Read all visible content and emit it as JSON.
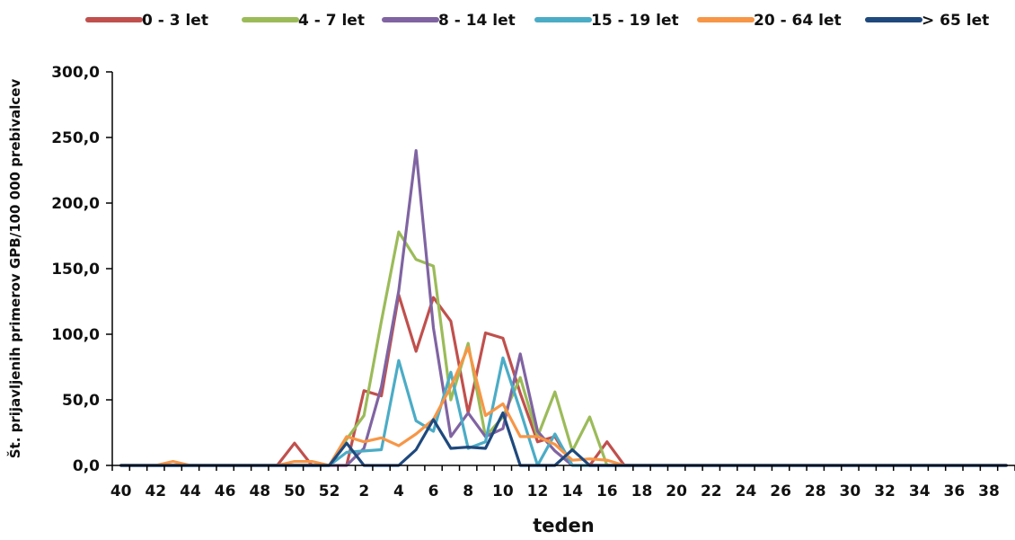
{
  "chart_data": {
    "type": "line",
    "title": "",
    "xlabel": "teden",
    "ylabel": "Št. prijavljenih primerov GPB/100 000 prebivalcev",
    "ylim": [
      0,
      300
    ],
    "yticks": [
      "0,0",
      "50,0",
      "100,0",
      "150,0",
      "200,0",
      "250,0",
      "300,0"
    ],
    "grid": false,
    "legend_position": "top",
    "x": [
      "40",
      "41",
      "42",
      "43",
      "44",
      "45",
      "46",
      "47",
      "48",
      "49",
      "50",
      "51",
      "52",
      "1",
      "2",
      "3",
      "4",
      "5",
      "6",
      "7",
      "8",
      "9",
      "10",
      "11",
      "12",
      "13",
      "14",
      "15",
      "16",
      "17",
      "18",
      "19",
      "20",
      "21",
      "22",
      "23",
      "24",
      "25",
      "26",
      "27",
      "28",
      "29",
      "30",
      "31",
      "32",
      "33",
      "34",
      "35",
      "36",
      "37",
      "38",
      "39"
    ],
    "xtick_labels": [
      "40",
      "42",
      "44",
      "46",
      "48",
      "50",
      "52",
      "2",
      "4",
      "6",
      "8",
      "10",
      "12",
      "14",
      "16",
      "18",
      "20",
      "22",
      "24",
      "26",
      "28",
      "30",
      "32",
      "34",
      "36",
      "38"
    ],
    "series": [
      {
        "name": "0 - 3 let",
        "color": "#c0504d",
        "values": [
          0,
          0,
          0,
          0,
          0,
          0,
          0,
          0,
          0,
          0,
          17,
          0,
          0,
          0,
          57,
          53,
          130,
          87,
          128,
          110,
          40,
          101,
          97,
          55,
          18,
          22,
          0,
          0,
          18,
          0,
          0,
          0,
          0,
          0,
          0,
          0,
          0,
          0,
          0,
          0,
          0,
          0,
          0,
          0,
          0,
          0,
          0,
          0,
          0,
          0,
          0,
          0
        ]
      },
      {
        "name": "4 - 7 let",
        "color": "#9bbb59",
        "values": [
          0,
          0,
          0,
          0,
          0,
          0,
          0,
          0,
          0,
          0,
          0,
          0,
          0,
          20,
          38,
          110,
          178,
          157,
          152,
          50,
          93,
          22,
          37,
          67,
          22,
          56,
          11,
          37,
          0,
          0,
          0,
          0,
          0,
          0,
          0,
          0,
          0,
          0,
          0,
          0,
          0,
          0,
          0,
          0,
          0,
          0,
          0,
          0,
          0,
          0,
          0,
          0
        ]
      },
      {
        "name": "8 - 14 let",
        "color": "#8064a2",
        "values": [
          0,
          0,
          0,
          0,
          0,
          0,
          0,
          0,
          0,
          0,
          0,
          0,
          0,
          0,
          13,
          60,
          133,
          240,
          105,
          22,
          40,
          22,
          28,
          85,
          26,
          11,
          0,
          0,
          0,
          0,
          0,
          0,
          0,
          0,
          0,
          0,
          0,
          0,
          0,
          0,
          0,
          0,
          0,
          0,
          0,
          0,
          0,
          0,
          0,
          0,
          0,
          0
        ]
      },
      {
        "name": "15 - 19 let",
        "color": "#4bacc6",
        "values": [
          0,
          0,
          0,
          0,
          0,
          0,
          0,
          0,
          0,
          0,
          0,
          0,
          0,
          10,
          11,
          12,
          80,
          34,
          26,
          71,
          13,
          18,
          82,
          42,
          0,
          24,
          0,
          0,
          0,
          0,
          0,
          0,
          0,
          0,
          0,
          0,
          0,
          0,
          0,
          0,
          0,
          0,
          0,
          0,
          0,
          0,
          0,
          0,
          0,
          0,
          0,
          0
        ]
      },
      {
        "name": "20 - 64 let",
        "color": "#f79646",
        "values": [
          0,
          0,
          0,
          3,
          0,
          0,
          0,
          0,
          0,
          0,
          3,
          3,
          0,
          22,
          18,
          21,
          15,
          24,
          35,
          60,
          90,
          38,
          47,
          22,
          22,
          16,
          4,
          5,
          4,
          0,
          0,
          0,
          0,
          0,
          0,
          0,
          0,
          0,
          0,
          0,
          0,
          0,
          0,
          0,
          0,
          0,
          0,
          0,
          0,
          0,
          0,
          0
        ]
      },
      {
        "name": "> 65 let",
        "color": "#1f497d",
        "values": [
          0,
          0,
          0,
          0,
          0,
          0,
          0,
          0,
          0,
          0,
          0,
          0,
          0,
          17,
          0,
          0,
          0,
          12,
          35,
          13,
          14,
          13,
          40,
          0,
          0,
          0,
          12,
          0,
          0,
          0,
          0,
          0,
          0,
          0,
          0,
          0,
          0,
          0,
          0,
          0,
          0,
          0,
          0,
          0,
          0,
          0,
          0,
          0,
          0,
          0,
          0,
          0
        ]
      }
    ]
  }
}
